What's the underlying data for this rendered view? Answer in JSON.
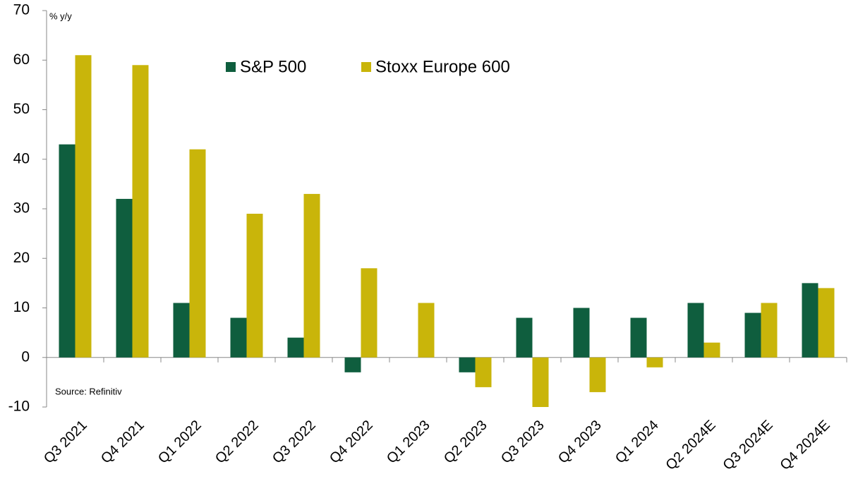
{
  "chart_data": {
    "type": "bar",
    "y_label": "% y/y",
    "annotation": "Source: Refinitiv",
    "categories": [
      "Q3 2021",
      "Q4 2021",
      "Q1 2022",
      "Q2 2022",
      "Q3 2022",
      "Q4 2022",
      "Q1 2023",
      "Q2 2023",
      "Q3 2023",
      "Q4 2023",
      "Q1 2024",
      "Q2 2024E",
      "Q3 2024E",
      "Q4 2024E"
    ],
    "series": [
      {
        "name": "S&P 500",
        "color": "#0f5e3e",
        "values": [
          43,
          32,
          11,
          8,
          4,
          -3,
          0,
          -3,
          8,
          10,
          8,
          11,
          9,
          15
        ]
      },
      {
        "name": "Stoxx Europe 600",
        "color": "#c9b50a",
        "values": [
          61,
          59,
          42,
          29,
          33,
          18,
          11,
          -6,
          -10,
          -7,
          -2,
          3,
          11,
          14
        ]
      }
    ],
    "ylim": [
      -10,
      70
    ],
    "yticks": [
      -10,
      0,
      10,
      20,
      30,
      40,
      50,
      60,
      70
    ]
  }
}
